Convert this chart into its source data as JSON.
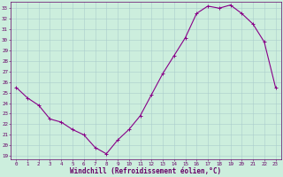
{
  "x": [
    0,
    1,
    2,
    3,
    4,
    5,
    6,
    7,
    8,
    9,
    10,
    11,
    12,
    13,
    14,
    15,
    16,
    17,
    18,
    19,
    20,
    21,
    22,
    23
  ],
  "y": [
    25.5,
    24.5,
    23.8,
    22.5,
    22.2,
    21.5,
    21.0,
    19.8,
    19.2,
    20.5,
    21.5,
    22.8,
    24.8,
    26.8,
    28.5,
    30.2,
    32.5,
    33.2,
    33.0,
    33.3,
    32.5,
    31.5,
    29.8,
    25.5
  ],
  "line_color": "#880088",
  "marker": "+",
  "marker_size": 3,
  "marker_linewidth": 0.7,
  "linewidth": 0.8,
  "background_color": "#cceedd",
  "grid_color": "#aacccc",
  "xlabel": "Windchill (Refroidissement éolien,°C)",
  "xlabel_fontsize": 5.5,
  "xlabel_color": "#660066",
  "yticks": [
    19,
    20,
    21,
    22,
    23,
    24,
    25,
    26,
    27,
    28,
    29,
    30,
    31,
    32,
    33
  ],
  "xticks": [
    0,
    1,
    2,
    3,
    4,
    5,
    6,
    7,
    8,
    9,
    10,
    11,
    12,
    13,
    14,
    15,
    16,
    17,
    18,
    19,
    20,
    21,
    22,
    23
  ],
  "tick_fontsize": 4.2,
  "tick_color": "#660066",
  "ylim": [
    18.7,
    33.6
  ],
  "xlim": [
    -0.5,
    23.5
  ],
  "spine_color": "#660066",
  "spine_linewidth": 0.5
}
